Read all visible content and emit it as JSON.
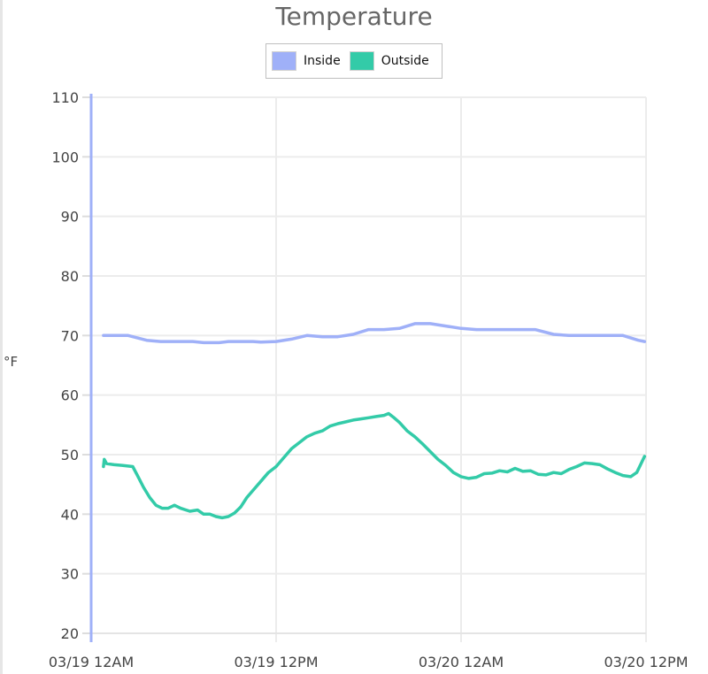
{
  "chart_data": {
    "type": "line",
    "title": "Temperature",
    "ylabel": "°F",
    "xlabel": "",
    "ylim": [
      20,
      110
    ],
    "yticks": [
      20,
      30,
      40,
      50,
      60,
      70,
      80,
      90,
      100,
      110
    ],
    "xlim_hours": [
      0,
      36
    ],
    "xticks": [
      {
        "hour": 0,
        "label": "03/19 12AM"
      },
      {
        "hour": 12,
        "label": "03/19 12PM"
      },
      {
        "hour": 24,
        "label": "03/20 12AM"
      },
      {
        "hour": 36,
        "label": "03/20 12PM"
      }
    ],
    "grid": true,
    "legend": "top-center",
    "series": [
      {
        "name": "Inside",
        "color": "#9fb0f8",
        "points": [
          [
            0.8,
            70
          ],
          [
            2.4,
            70
          ],
          [
            3.6,
            69.2
          ],
          [
            4.5,
            69
          ],
          [
            6.6,
            69
          ],
          [
            7.3,
            68.8
          ],
          [
            8.3,
            68.8
          ],
          [
            8.9,
            69
          ],
          [
            10.5,
            69
          ],
          [
            11.0,
            68.9
          ],
          [
            12.0,
            69
          ],
          [
            13.0,
            69.4
          ],
          [
            14.0,
            70
          ],
          [
            15.0,
            69.8
          ],
          [
            16.0,
            69.8
          ],
          [
            17.0,
            70.2
          ],
          [
            18.0,
            71
          ],
          [
            19.0,
            71
          ],
          [
            20.0,
            71.2
          ],
          [
            21.0,
            72
          ],
          [
            22.0,
            72
          ],
          [
            23.0,
            71.6
          ],
          [
            24.0,
            71.2
          ],
          [
            25.0,
            71
          ],
          [
            27.0,
            71
          ],
          [
            28.0,
            71
          ],
          [
            28.8,
            71
          ],
          [
            30.0,
            70.2
          ],
          [
            31.0,
            70
          ],
          [
            33.0,
            70
          ],
          [
            34.5,
            70
          ],
          [
            35.5,
            69.2
          ],
          [
            35.9,
            69
          ]
        ]
      },
      {
        "name": "Outside",
        "color": "#33cba8",
        "points": [
          [
            0.8,
            48
          ],
          [
            0.85,
            49.2
          ],
          [
            1.0,
            48.5
          ],
          [
            1.5,
            48.3
          ],
          [
            2.0,
            48.2
          ],
          [
            2.7,
            48
          ],
          [
            3.0,
            46.5
          ],
          [
            3.4,
            44.5
          ],
          [
            3.8,
            42.8
          ],
          [
            4.2,
            41.5
          ],
          [
            4.6,
            41
          ],
          [
            5.0,
            41
          ],
          [
            5.4,
            41.5
          ],
          [
            5.8,
            41
          ],
          [
            6.4,
            40.5
          ],
          [
            6.9,
            40.7
          ],
          [
            7.3,
            40
          ],
          [
            7.7,
            40
          ],
          [
            8.1,
            39.6
          ],
          [
            8.5,
            39.4
          ],
          [
            8.9,
            39.6
          ],
          [
            9.3,
            40.2
          ],
          [
            9.7,
            41.2
          ],
          [
            10.1,
            42.8
          ],
          [
            10.5,
            44
          ],
          [
            11.0,
            45.5
          ],
          [
            11.5,
            47
          ],
          [
            12.0,
            48
          ],
          [
            12.5,
            49.5
          ],
          [
            13.0,
            51
          ],
          [
            13.5,
            52
          ],
          [
            14.0,
            53
          ],
          [
            14.5,
            53.6
          ],
          [
            15.0,
            54
          ],
          [
            15.5,
            54.8
          ],
          [
            16.0,
            55.2
          ],
          [
            16.5,
            55.5
          ],
          [
            17.0,
            55.8
          ],
          [
            17.5,
            56
          ],
          [
            18.0,
            56.2
          ],
          [
            18.5,
            56.4
          ],
          [
            19.0,
            56.6
          ],
          [
            19.3,
            56.9
          ],
          [
            19.6,
            56.3
          ],
          [
            20.0,
            55.4
          ],
          [
            20.5,
            54
          ],
          [
            21.0,
            53
          ],
          [
            21.5,
            51.8
          ],
          [
            22.0,
            50.5
          ],
          [
            22.5,
            49.2
          ],
          [
            23.0,
            48.2
          ],
          [
            23.5,
            47
          ],
          [
            24.0,
            46.3
          ],
          [
            24.5,
            46
          ],
          [
            25.0,
            46.2
          ],
          [
            25.5,
            46.8
          ],
          [
            26.0,
            46.9
          ],
          [
            26.5,
            47.3
          ],
          [
            27.0,
            47.1
          ],
          [
            27.5,
            47.7
          ],
          [
            28.0,
            47.2
          ],
          [
            28.5,
            47.3
          ],
          [
            29.0,
            46.7
          ],
          [
            29.5,
            46.6
          ],
          [
            30.0,
            47
          ],
          [
            30.5,
            46.8
          ],
          [
            31.0,
            47.5
          ],
          [
            31.5,
            48
          ],
          [
            32.0,
            48.6
          ],
          [
            32.5,
            48.5
          ],
          [
            33.0,
            48.3
          ],
          [
            33.5,
            47.6
          ],
          [
            34.0,
            47
          ],
          [
            34.5,
            46.5
          ],
          [
            35.0,
            46.3
          ],
          [
            35.4,
            47
          ],
          [
            35.9,
            49.7
          ]
        ]
      }
    ]
  }
}
